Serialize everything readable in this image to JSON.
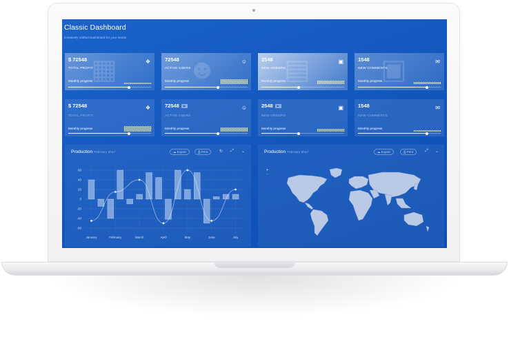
{
  "app": {
    "title": "Classic Dashboard",
    "subtitle": "Creatively crafted Dashboard for your needs"
  },
  "colors": {
    "screen_bg": "#1359bf",
    "card_text": "#ffffff",
    "muted_text": "#8fb4ea",
    "line": "#ffffff"
  },
  "stat_cards_row1": [
    {
      "value": "$ 72548",
      "label": "TOTAL PROFIT",
      "progress_label": "Monthly progress",
      "icon": "cubes-icon",
      "progress": 0.73
    },
    {
      "value": "72548",
      "label": "ACTIVE USERS",
      "progress_label": "Monthly progress",
      "icon": "users-icon",
      "progress": 0.64
    },
    {
      "value": "2548",
      "label": "NEW ORDERS",
      "progress_label": "Monthly progress",
      "icon": "cart-icon",
      "progress": 0.45
    },
    {
      "value": "1548",
      "label": "NEW COMMENTS",
      "progress_label": "Monthly progress",
      "icon": "comments-icon",
      "progress": 0.83
    }
  ],
  "stat_cards_row2": [
    {
      "value": "$ 72548",
      "label": "TOTAL PROFIT",
      "progress_label": "Monthly progress",
      "icon": "cubes-icon",
      "progress": 0.73
    },
    {
      "value": "72548",
      "label": "ACTIVE USERS",
      "progress_label": "Monthly progress",
      "icon": "users-icon",
      "progress": 0.64
    },
    {
      "value": "2548",
      "label": "NEW ORDERS",
      "progress_label": "Monthly progress",
      "icon": "cart-icon",
      "progress": 0.45
    },
    {
      "value": "1548",
      "label": "NEW COMMENTS",
      "progress_label": "Monthly progress",
      "icon": "comments-icon",
      "progress": 0.83
    }
  ],
  "chart_panel": {
    "title": "Production",
    "subtitle": "February 2017",
    "export_label": "Export",
    "print_label": "Print"
  },
  "map_panel": {
    "title": "Production",
    "subtitle": "February 2017",
    "export_label": "Export",
    "print_label": "Print",
    "zoom_in": "+",
    "zoom_out": "-"
  },
  "chart_data": {
    "type": "bar",
    "categories": [
      "January",
      "February",
      "March",
      "April",
      "May",
      "June",
      "July"
    ],
    "x_positions": [
      0,
      1,
      2,
      3,
      4,
      5,
      6
    ],
    "bar_x": [
      0,
      0.4,
      0.8,
      1.2,
      1.6,
      2.0,
      2.4,
      2.8,
      3.2,
      3.6,
      4.0,
      4.4,
      4.8,
      5.2,
      5.6,
      6.0
    ],
    "bar_values": [
      40,
      -15,
      -40,
      60,
      -10,
      10,
      55,
      45,
      -42,
      60,
      20,
      55,
      -50,
      5,
      10,
      10
    ],
    "line_x": [
      0,
      1.0,
      2.0,
      3.0,
      4.0,
      5.0,
      6.0
    ],
    "line_values": [
      -45,
      15,
      40,
      -50,
      60,
      -45,
      20
    ],
    "yticks": [
      60,
      40,
      20,
      0,
      -20,
      -40,
      -60
    ],
    "ylim": [
      -70,
      70
    ],
    "grid": true,
    "title": "",
    "xlabel": "",
    "ylabel": ""
  }
}
